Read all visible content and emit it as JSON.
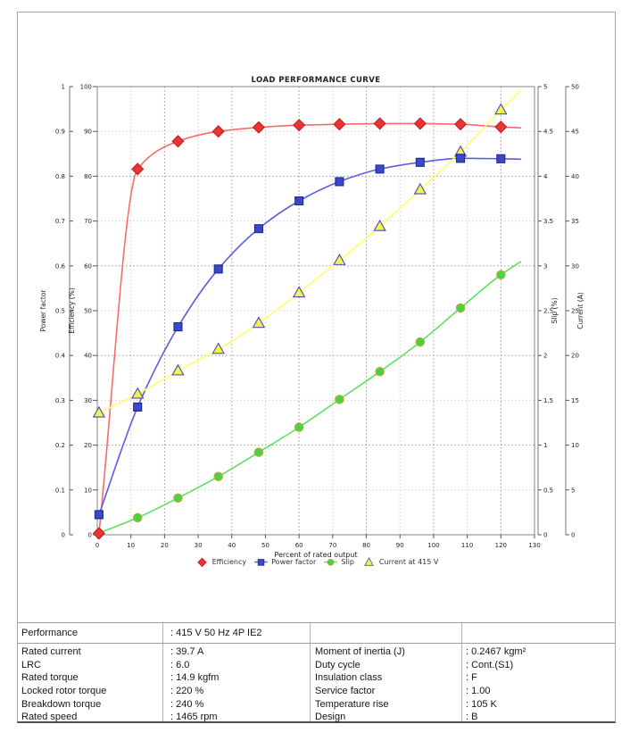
{
  "chart_data": {
    "type": "line",
    "title": "LOAD PERFORMANCE CURVE",
    "x_axis": {
      "label": "Percent of rated output",
      "range": [
        0,
        130
      ],
      "tick_values": [
        0,
        10,
        20,
        30,
        40,
        50,
        60,
        70,
        80,
        90,
        100,
        110,
        120,
        130
      ],
      "tick_labels": [
        "0",
        "10",
        "20",
        "30",
        "40",
        "50",
        "60",
        "70",
        "80",
        "90",
        "100",
        "110",
        "120",
        "130"
      ]
    },
    "axes": [
      {
        "id": "pf",
        "label": "Power factor",
        "side": "left-outer",
        "range": [
          0,
          1
        ],
        "tick_values": [
          0,
          0.1,
          0.2,
          0.3,
          0.4,
          0.5,
          0.6,
          0.7,
          0.8,
          0.9,
          1
        ],
        "tick_labels": [
          "0",
          "0.1",
          "0.2",
          "0.3",
          "0.4",
          "0.5",
          "0.6",
          "0.7",
          "0.8",
          "0.9",
          "1"
        ]
      },
      {
        "id": "eff",
        "label": "Efficiency (%)",
        "side": "left-inner",
        "range": [
          0,
          100
        ],
        "tick_values": [
          0,
          10,
          20,
          30,
          40,
          50,
          60,
          70,
          80,
          90,
          100
        ],
        "tick_labels": [
          "0",
          "10",
          "20",
          "30",
          "40",
          "50",
          "60",
          "70",
          "80",
          "90",
          "100"
        ]
      },
      {
        "id": "slip",
        "label": "Slip (%)",
        "side": "right-inner",
        "range": [
          0,
          5
        ],
        "tick_values": [
          0,
          0.5,
          1,
          1.5,
          2,
          2.5,
          3,
          3.5,
          4,
          4.5,
          5
        ],
        "tick_labels": [
          "0",
          "0.5",
          "1",
          "1.5",
          "2",
          "2.5",
          "3",
          "3.5",
          "4",
          "4.5",
          "5"
        ]
      },
      {
        "id": "cur",
        "label": "Current (A)",
        "side": "right-outer",
        "range": [
          0,
          50
        ],
        "tick_values": [
          0,
          5,
          10,
          15,
          20,
          25,
          30,
          35,
          40,
          45,
          50
        ],
        "tick_labels": [
          "0",
          "5",
          "10",
          "15",
          "20",
          "25",
          "30",
          "35",
          "40",
          "45",
          "50"
        ]
      }
    ],
    "x": [
      0.5,
      12,
      24,
      36,
      48,
      60,
      72,
      84,
      96,
      108,
      120
    ],
    "x_line_end": 126,
    "grid": "dashed, minor every 10 light / major every 20 dark",
    "legend_position": "bottom-center",
    "series": [
      {
        "name": "Efficiency",
        "axis": "eff",
        "marker": "diamond",
        "line_color": "#f86b6b",
        "marker_fill": "#e93535",
        "marker_stroke": "#c02020",
        "values": [
          0.3,
          81.6,
          87.8,
          90.0,
          90.9,
          91.4,
          91.6,
          91.75,
          91.75,
          91.6,
          91.0
        ],
        "end_value": 90.8
      },
      {
        "name": "Power factor",
        "axis": "pf",
        "marker": "square",
        "line_color": "#5c5ce0",
        "marker_fill": "#3a49cb",
        "marker_stroke": "#20288a",
        "values": [
          0.045,
          0.285,
          0.464,
          0.593,
          0.683,
          0.745,
          0.788,
          0.816,
          0.831,
          0.84,
          0.839
        ],
        "end_value": 0.838
      },
      {
        "name": "Slip",
        "axis": "slip",
        "marker": "circle",
        "line_color": "#5fe05f",
        "marker_fill": "#46d446",
        "marker_stroke": "#c9a23c",
        "values": [
          0.02,
          0.19,
          0.41,
          0.65,
          0.92,
          1.2,
          1.51,
          1.82,
          2.15,
          2.53,
          2.9
        ],
        "end_value": 3.05
      },
      {
        "name": "Current at 415 V",
        "axis": "cur",
        "marker": "triangle",
        "line_color": "#ffff66",
        "marker_fill": "#f3f348",
        "marker_stroke": "#4a4ac0",
        "values": [
          13.6,
          15.7,
          18.3,
          20.7,
          23.6,
          27.0,
          30.6,
          34.4,
          38.5,
          42.7,
          47.4
        ],
        "end_value": 49.6
      }
    ]
  },
  "table": {
    "performance_label": "Performance",
    "performance_value": ": 415 V 50 Hz 4P IE2",
    "rows": [
      {
        "l1": "Rated current",
        "v1": ": 39.7 A",
        "l2": "Moment of inertia (J)",
        "v2": ": 0.2467 kgm²"
      },
      {
        "l1": "LRC",
        "v1": ": 6.0",
        "l2": "Duty cycle",
        "v2": ": Cont.(S1)"
      },
      {
        "l1": "Rated torque",
        "v1": ": 14.9 kgfm",
        "l2": "Insulation class",
        "v2": ": F"
      },
      {
        "l1": "Locked rotor torque",
        "v1": ": 220 %",
        "l2": "Service factor",
        "v2": ": 1.00"
      },
      {
        "l1": "Breakdown torque",
        "v1": ": 240 %",
        "l2": "Temperature rise",
        "v2": ": 105 K"
      },
      {
        "l1": "Rated speed",
        "v1": ": 1465 rpm",
        "l2": "Design",
        "v2": ": B"
      }
    ]
  }
}
